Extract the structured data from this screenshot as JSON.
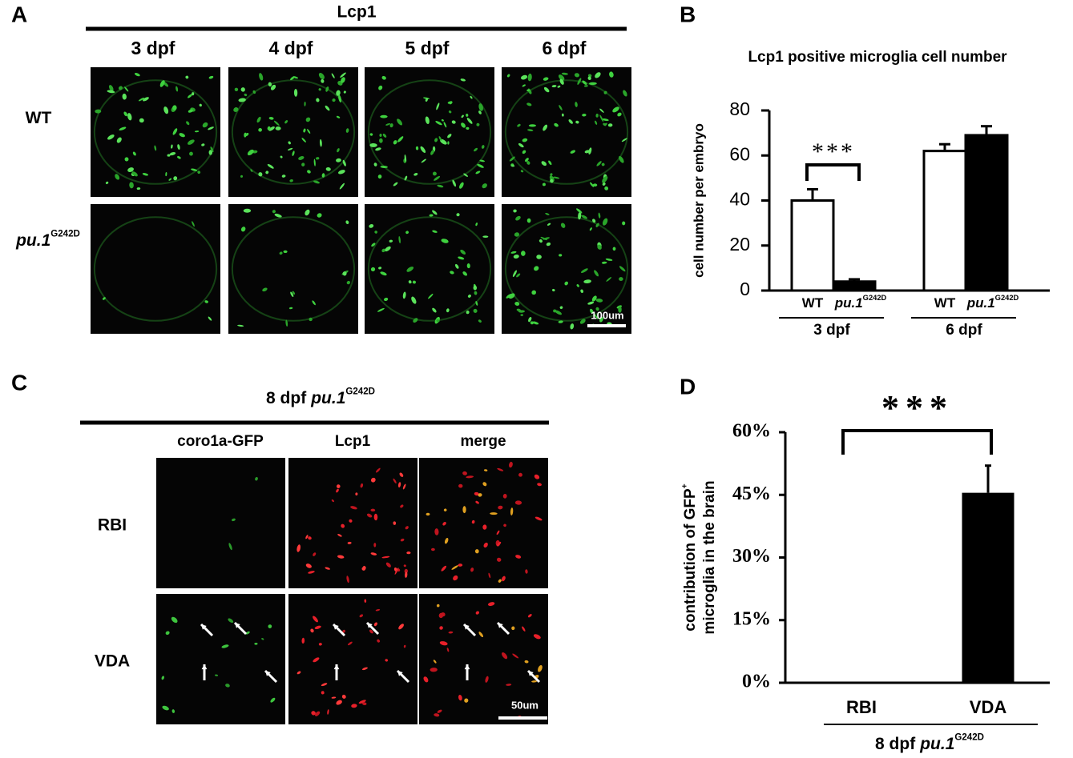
{
  "panel_a": {
    "letter": "A",
    "title": "Lcp1",
    "columns": [
      "3 dpf",
      "4 dpf",
      "5 dpf",
      "6 dpf"
    ],
    "rows": [
      {
        "label": "WT"
      },
      {
        "label": "pu.1",
        "sup": "G242D"
      }
    ],
    "scale_bar": "100um"
  },
  "panel_c": {
    "letter": "C",
    "title": "8 dpf",
    "title_italic": "pu.1",
    "title_sup": "G242D",
    "columns": [
      "coro1a-GFP",
      "Lcp1",
      "merge"
    ],
    "rows": [
      "RBI",
      "VDA"
    ],
    "scale_bar": "50um"
  },
  "chart_data": [
    {
      "type": "bar",
      "panel": "B",
      "title": "Lcp1 positive microglia cell number",
      "y_label": "cell number per embryo",
      "groups": [
        "3 dpf",
        "6 dpf"
      ],
      "series": [
        {
          "name": "WT",
          "color": "#ffffff",
          "values": [
            40,
            62
          ],
          "errors": [
            5,
            3
          ]
        },
        {
          "name": "pu.1",
          "name_sup": "G242D",
          "color": "#000000",
          "values": [
            4,
            69
          ],
          "errors": [
            1,
            4
          ]
        }
      ],
      "ylim": [
        0,
        80
      ],
      "yticks": [
        0,
        20,
        40,
        60,
        80
      ],
      "annotation": "***"
    },
    {
      "type": "bar",
      "panel": "D",
      "y_label": {
        "lines": [
          "contribution of  GFP",
          "microglia in the brain"
        ],
        "sup": "+"
      },
      "categories": [
        "RBI",
        "VDA"
      ],
      "values": [
        0,
        45.5
      ],
      "errors": [
        0,
        6.5
      ],
      "color": "#000000",
      "x_label": {
        "text": "8 dpf",
        "italic": "pu.1",
        "sup": "G242D"
      },
      "ylim": [
        0,
        60
      ],
      "yticks": [
        {
          "value": 0,
          "label": "0%"
        },
        {
          "value": 15,
          "label": "15%"
        },
        {
          "value": 30,
          "label": "30%"
        },
        {
          "value": 45,
          "label": "45%"
        },
        {
          "value": 60,
          "label": "60%"
        }
      ],
      "annotation": "***"
    }
  ]
}
